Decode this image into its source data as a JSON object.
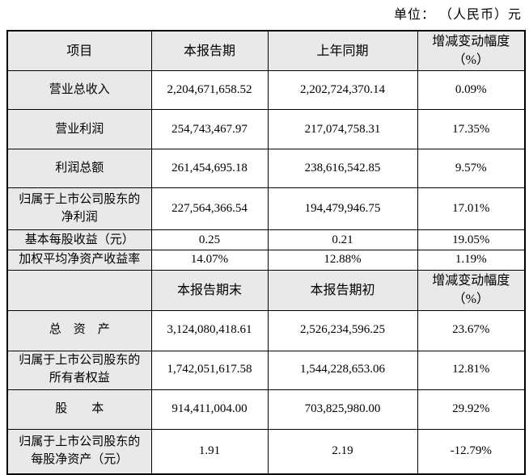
{
  "page": {
    "unit_label": "单位： （人民币）元"
  },
  "table": {
    "colors": {
      "header_bg": "#e9e9e9",
      "border": "#000000"
    },
    "header1": {
      "item": "项目",
      "current": "本报告期",
      "prior": "上年同期",
      "change": "增减变动幅度\n（%）"
    },
    "rows1": [
      {
        "item": "营业总收入",
        "current": "2,204,671,658.52",
        "prior": "2,202,724,370.14",
        "change": "0.09%"
      },
      {
        "item": "营业利润",
        "current": "254,743,467.97",
        "prior": "217,074,758.31",
        "change": "17.35%"
      },
      {
        "item": "利润总额",
        "current": "261,454,695.18",
        "prior": "238,616,542.85",
        "change": "9.57%"
      },
      {
        "item": "归属于上市公司股东的\n净利润",
        "current": "227,564,366.54",
        "prior": "194,479,946.75",
        "change": "17.01%"
      },
      {
        "item": "基本每股收益（元）",
        "current": "0.25",
        "prior": "0.21",
        "change": "19.05%"
      },
      {
        "item": "加权平均净资产收益率",
        "current": "14.07%",
        "prior": "12.88%",
        "change": "1.19%"
      }
    ],
    "header2": {
      "item": "",
      "current": "本报告期末",
      "prior": "本报告期初",
      "change": "增减变动幅度\n（%）"
    },
    "rows2": [
      {
        "item": "总　资　产",
        "current": "3,124,080,418.61",
        "prior": "2,526,234,596.25",
        "change": "23.67%"
      },
      {
        "item": "归属于上市公司股东的\n所有者权益",
        "current": "1,742,051,617.58",
        "prior": "1,544,228,653.06",
        "change": "12.81%"
      },
      {
        "item": "股　　本",
        "current": "914,411,004.00",
        "prior": "703,825,980.00",
        "change": "29.92%"
      },
      {
        "item": "归属于上市公司股东的\n每股净资产（元）",
        "current": "1.91",
        "prior": "2.19",
        "change": "-12.79%"
      }
    ]
  }
}
